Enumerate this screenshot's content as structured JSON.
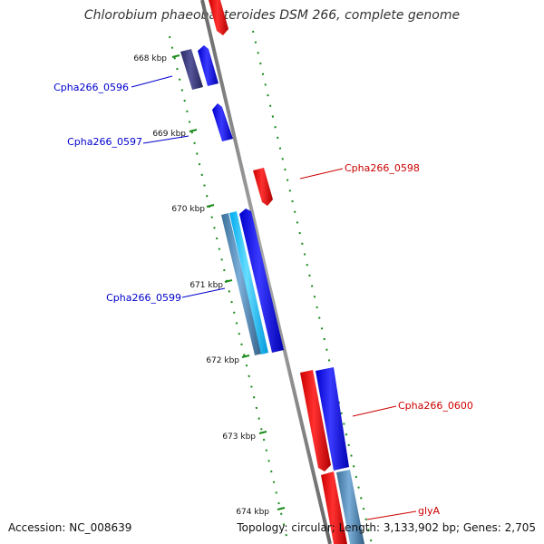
{
  "title": "Chlorobium phaeobacteroides DSM 266, complete genome",
  "footer": {
    "accession": "Accession: NC_008639",
    "topology": "Topology: circular; Length: 3,133,902 bp; Genes: 2,705"
  },
  "colors": {
    "backbone": "#888888",
    "tick": "#1a8a1a",
    "forward_gene": "#0000ee",
    "reverse_gene": "#ee0000",
    "forward_label": "#0000cc",
    "reverse_label": "#cc0000"
  },
  "ticks": [
    "668 kbp",
    "669 kbp",
    "670 kbp",
    "671 kbp",
    "672 kbp",
    "673 kbp",
    "674 kbp"
  ],
  "genes": [
    {
      "label": "Cpha266_0596",
      "strand": "forward"
    },
    {
      "label": "Cpha266_0597",
      "strand": "forward"
    },
    {
      "label": "Cpha266_0598",
      "strand": "reverse"
    },
    {
      "label": "Cpha266_0599",
      "strand": "forward"
    },
    {
      "label": "Cpha266_0600",
      "strand": "reverse"
    },
    {
      "label": "glyA",
      "strand": "reverse"
    }
  ]
}
